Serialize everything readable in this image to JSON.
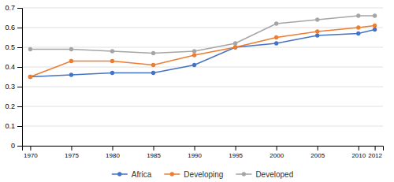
{
  "chart_data": {
    "type": "line",
    "x": [
      1970,
      1975,
      1980,
      1985,
      1990,
      1995,
      2000,
      2005,
      2010,
      2012
    ],
    "series": [
      {
        "name": "Africa",
        "color": "#4472C4",
        "values": [
          0.35,
          0.36,
          0.37,
          0.37,
          0.41,
          0.5,
          0.52,
          0.56,
          0.57,
          0.59
        ]
      },
      {
        "name": "Developing",
        "color": "#ED7D31",
        "values": [
          0.35,
          0.43,
          0.43,
          0.41,
          0.46,
          0.5,
          0.55,
          0.58,
          0.6,
          0.61
        ]
      },
      {
        "name": "Developed",
        "color": "#A5A5A5",
        "values": [
          0.49,
          0.49,
          0.48,
          0.47,
          0.48,
          0.52,
          0.62,
          0.64,
          0.66,
          0.66
        ]
      }
    ],
    "xlim": [
      1969,
      2013
    ],
    "xticks": [
      1970,
      1975,
      1980,
      1985,
      1990,
      1995,
      2000,
      2005,
      2010,
      2012
    ],
    "ylim": [
      0,
      0.7
    ],
    "yticks": [
      0,
      0.1,
      0.2,
      0.3,
      0.4,
      0.5,
      0.6,
      0.7
    ],
    "grid": true,
    "legend": "bottom",
    "marker": "circle"
  }
}
